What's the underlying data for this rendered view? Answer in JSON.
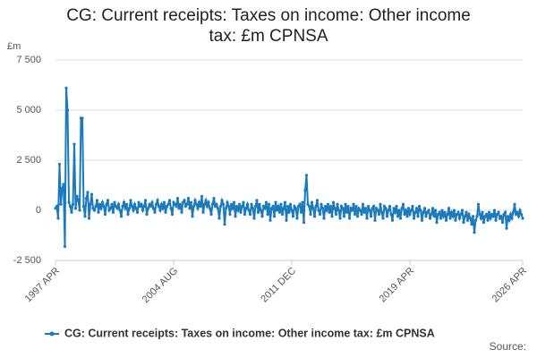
{
  "chart_data": {
    "type": "line",
    "title": "CG: Current receipts: Taxes on income: Other income tax: £m CPNSA",
    "y_unit": "£m",
    "source": "Source:",
    "ylim": [
      -2500,
      7500
    ],
    "yticks": [
      {
        "value": -2500,
        "label": "-2 500"
      },
      0,
      {
        "value": 2500,
        "label": "2 500"
      },
      {
        "value": 5000,
        "label": "5 000"
      },
      {
        "value": 7500,
        "label": "7 500"
      }
    ],
    "grid": true,
    "legend": "bottom",
    "categories": [
      "1997 APR",
      null,
      null,
      null,
      null,
      null,
      null,
      null,
      null,
      null,
      null,
      null,
      null,
      null,
      null,
      null,
      null,
      null,
      null,
      null,
      null,
      null,
      null,
      null,
      null,
      null,
      null,
      null,
      null,
      null,
      null,
      null,
      null,
      null,
      null,
      null,
      null,
      null,
      null,
      null,
      null,
      null,
      null,
      null,
      null,
      null,
      null,
      null,
      null,
      null,
      null,
      null,
      null,
      null,
      null,
      null,
      null,
      null,
      null,
      null,
      null,
      null,
      null,
      null,
      null,
      null,
      null,
      null,
      null,
      null,
      null,
      null,
      null,
      null,
      null,
      null,
      null,
      null,
      null,
      null,
      null,
      null,
      null,
      null,
      null,
      null,
      null,
      null,
      "2004 AUG",
      null,
      null,
      null,
      null,
      null,
      null,
      null,
      null,
      null,
      null,
      null,
      null,
      null,
      null,
      null,
      null,
      null,
      null,
      null,
      null,
      null,
      null,
      null,
      null,
      null,
      null,
      null,
      null,
      null,
      null,
      null,
      null,
      null,
      null,
      null,
      null,
      null,
      null,
      null,
      null,
      null,
      null,
      null,
      null,
      null,
      null,
      null,
      null,
      null,
      null,
      null,
      null,
      null,
      null,
      null,
      null,
      null,
      null,
      null,
      null,
      null,
      null,
      null,
      null,
      null,
      null,
      null,
      null,
      null,
      null,
      null,
      null,
      null,
      null,
      null,
      null,
      null,
      null,
      null,
      null,
      null,
      null,
      null,
      null,
      null,
      null,
      null,
      "2011 DEC",
      null,
      null,
      null,
      null,
      null,
      null,
      null,
      null,
      null,
      null,
      null,
      null,
      null,
      null,
      null,
      null,
      null,
      null,
      null,
      null,
      null,
      null,
      null,
      null,
      null,
      null,
      null,
      null,
      null,
      null,
      null,
      null,
      null,
      null,
      null,
      null,
      null,
      null,
      null,
      null,
      null,
      null,
      null,
      null,
      null,
      null,
      null,
      null,
      null,
      null,
      null,
      null,
      null,
      null,
      null,
      null,
      null,
      null,
      null,
      null,
      null,
      null,
      null,
      null,
      null,
      null,
      null,
      null,
      null,
      null,
      null,
      null,
      null,
      null,
      null,
      null,
      null,
      null,
      null,
      null,
      null,
      null,
      null,
      null,
      null,
      null,
      null,
      "2019 APR",
      null,
      null,
      null,
      null,
      null,
      null,
      null,
      null,
      null,
      null,
      null,
      null,
      null,
      null,
      null,
      null,
      null,
      null,
      null,
      null,
      null,
      null,
      null,
      null,
      null,
      null,
      null,
      null,
      null,
      null,
      null,
      null,
      null,
      null,
      null,
      null,
      null,
      null,
      null,
      null,
      null,
      null,
      null,
      null,
      null,
      null,
      null,
      null,
      null,
      null,
      null,
      null,
      null,
      null,
      null,
      null,
      null,
      null,
      null,
      null,
      null,
      null,
      null,
      null,
      null,
      null,
      null,
      null,
      null,
      null,
      null,
      null,
      null,
      null,
      null,
      null,
      null,
      null,
      null,
      null,
      null,
      null,
      null,
      "2026 APR"
    ],
    "series": [
      {
        "name": "CG: Current receipts: Taxes on income: Other income tax: £m CPNSA",
        "color": "#1a7abb",
        "values": [
          100,
          200,
          -400,
          2300,
          300,
          1100,
          1300,
          -1800,
          6100,
          5000,
          400,
          200,
          -100,
          300,
          3300,
          100,
          700,
          500,
          0,
          4600,
          4600,
          200,
          -300,
          600,
          900,
          -400,
          300,
          800,
          100,
          0,
          200,
          500,
          -100,
          300,
          100,
          400,
          200,
          -200,
          300,
          500,
          0,
          100,
          300,
          -100,
          400,
          200,
          100,
          300,
          0,
          -300,
          200,
          400,
          100,
          300,
          -200,
          100,
          500,
          200,
          0,
          300,
          100,
          -100,
          400,
          200,
          300,
          0,
          200,
          500,
          -200,
          100,
          300,
          200,
          400,
          100,
          -100,
          300,
          500,
          200,
          0,
          300,
          100,
          400,
          -100,
          200,
          300,
          500,
          100,
          -200,
          400,
          300,
          200,
          600,
          100,
          300,
          -100,
          400,
          500,
          200,
          300,
          600,
          100,
          400,
          -300,
          200,
          500,
          300,
          100,
          400,
          200,
          700,
          -100,
          300,
          500,
          200,
          400,
          100,
          -200,
          300,
          600,
          200,
          300,
          100,
          -400,
          200,
          500,
          300,
          -700,
          100,
          400,
          200,
          -200,
          300,
          100,
          400,
          -300,
          200,
          0,
          300,
          -100,
          200,
          400,
          -200,
          100,
          300,
          0,
          -200,
          300,
          100,
          -400,
          200,
          500,
          -100,
          300,
          0,
          -300,
          200,
          100,
          400,
          -200,
          300,
          -500,
          100,
          200,
          -300,
          400,
          0,
          200,
          -100,
          300,
          -200,
          100,
          400,
          -500,
          200,
          -100,
          300,
          0,
          -300,
          200,
          100,
          -400,
          200,
          300,
          -100,
          400,
          -600,
          1000,
          1750,
          300,
          200,
          -200,
          400,
          100,
          -300,
          200,
          500,
          0,
          -200,
          300,
          100,
          -400,
          200,
          0,
          300,
          -100,
          200,
          -300,
          400,
          100,
          -200,
          300,
          0,
          -400,
          200,
          100,
          -300,
          300,
          -100,
          200,
          -400,
          100,
          0,
          300,
          -200,
          200,
          -300,
          100,
          0,
          -200,
          300,
          -100,
          100,
          -400,
          200,
          0,
          -300,
          100,
          200,
          -500,
          100,
          0,
          -200,
          300,
          -100,
          -400,
          200,
          100,
          -300,
          0,
          200,
          -200,
          -500,
          100,
          -100,
          200,
          -300,
          0,
          -400,
          100,
          300,
          -200,
          0,
          -300,
          100,
          -200,
          0,
          200,
          -400,
          -100,
          100,
          -300,
          200,
          0,
          -500,
          -100,
          100,
          -300,
          -100,
          0,
          -400,
          -200,
          100,
          -300,
          0,
          -600,
          -200,
          -100,
          -400,
          0,
          -300,
          -100,
          -500,
          -200,
          100,
          -400,
          -100,
          -300,
          0,
          -500,
          -200,
          -100,
          -400,
          -200,
          0,
          -600,
          -300,
          -100,
          -500,
          -200,
          -400,
          -700,
          -300,
          -1100,
          -500,
          -300,
          300,
          -200,
          -400,
          -100,
          -600,
          -300,
          -200,
          -500,
          -100,
          -400,
          -200,
          -300,
          0,
          -500,
          -200,
          -100,
          -400,
          -300,
          -600,
          -200,
          -100,
          -900,
          -300,
          -500,
          -200,
          -400,
          -100,
          300,
          -200,
          -100,
          -300,
          0,
          -200,
          -400
        ]
      }
    ]
  }
}
